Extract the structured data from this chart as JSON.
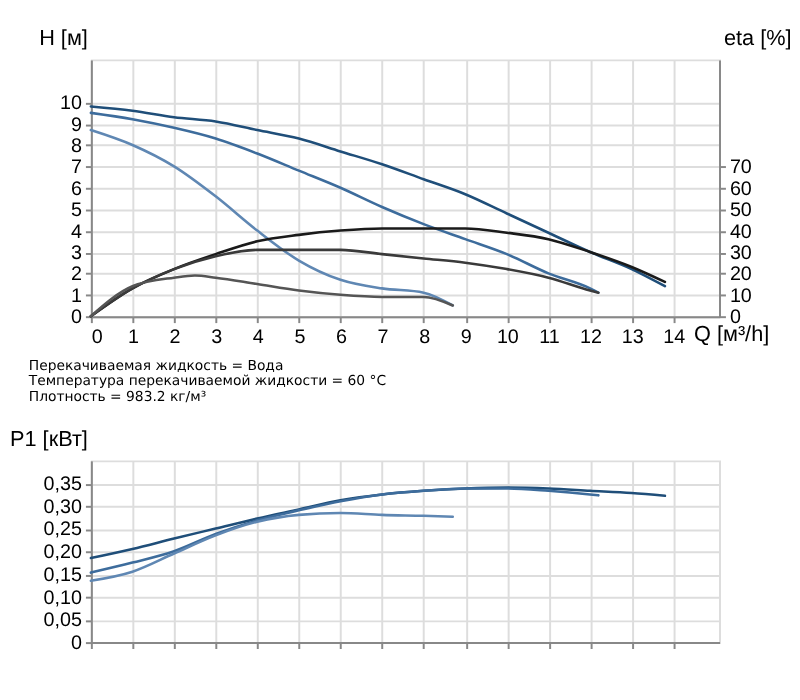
{
  "chart_data": [
    {
      "type": "line",
      "xlabel": "Q [м³/h]",
      "ylabel": "H [м]",
      "y2label": "eta [%]",
      "xlim": [
        0,
        15.1
      ],
      "xticks": [
        0,
        1,
        2,
        3,
        4,
        5,
        6,
        7,
        8,
        9,
        10,
        11,
        12,
        13,
        14
      ],
      "ylim": [
        0,
        12
      ],
      "yticks": [
        0,
        1,
        2,
        3,
        4,
        5,
        6,
        7,
        8,
        9,
        10
      ],
      "y2lim": [
        0,
        120
      ],
      "y2ticks": [
        0,
        10,
        20,
        30,
        40,
        50,
        60,
        70
      ],
      "grid": true,
      "marker": "none",
      "line_style": "solid",
      "series": [
        {
          "color": "#1f4e79",
          "x": [
            0,
            1,
            2,
            3,
            4,
            5,
            6,
            7,
            8,
            9,
            10,
            11,
            12,
            13,
            13.8
          ],
          "values": [
            9.8,
            9.6,
            9.3,
            9.1,
            8.7,
            8.3,
            7.7,
            7.1,
            6.4,
            5.7,
            4.8,
            3.9,
            3.0,
            2.2,
            1.4
          ]
        },
        {
          "color": "#3d6c9c",
          "x": [
            0,
            1,
            2,
            3,
            4,
            5,
            6,
            7,
            8,
            9,
            10,
            11,
            12,
            12.2
          ],
          "values": [
            9.5,
            9.2,
            8.8,
            8.3,
            7.6,
            6.8,
            6.0,
            5.1,
            4.3,
            3.6,
            2.9,
            2.0,
            1.3,
            1.1
          ]
        },
        {
          "color": "#5f87b3",
          "x": [
            0,
            1,
            2,
            3,
            4,
            5,
            6,
            7,
            8,
            8.7
          ],
          "values": [
            8.7,
            8.0,
            7.0,
            5.6,
            4.0,
            2.6,
            1.7,
            1.3,
            1.1,
            0.5
          ]
        },
        {
          "color": "#1a1a1a",
          "axis": "y2",
          "x": [
            0,
            1,
            2,
            3,
            4,
            5,
            6,
            7,
            8,
            9,
            10,
            11,
            12,
            13,
            13.8
          ],
          "values": [
            0,
            13,
            22,
            29,
            35,
            38,
            40,
            41,
            41,
            41,
            39,
            36,
            30,
            23,
            16
          ]
        },
        {
          "color": "#3a3a3a",
          "axis": "y2",
          "x": [
            0,
            1,
            2,
            3,
            4,
            5,
            6,
            7,
            8,
            9,
            10,
            11,
            12,
            12.2
          ],
          "values": [
            0,
            13,
            22,
            28,
            31,
            31,
            31,
            29,
            27,
            25,
            22,
            18,
            12,
            11
          ]
        },
        {
          "color": "#555555",
          "axis": "y2",
          "x": [
            0,
            1,
            2,
            2.5,
            3,
            4,
            5,
            6,
            7,
            8,
            8.7
          ],
          "values": [
            0,
            14,
            18,
            19,
            18,
            15,
            12,
            10,
            9,
            9,
            5
          ]
        }
      ]
    },
    {
      "type": "line",
      "ylabel": "P1 [кВт]",
      "tick_labels": "y",
      "xlim": [
        0,
        15.1
      ],
      "xticks": [
        0,
        1,
        2,
        3,
        4,
        5,
        6,
        7,
        8,
        9,
        10,
        11,
        12,
        13,
        14
      ],
      "ylim": [
        0,
        0.4
      ],
      "yticks": [
        0,
        {
          "value": 0.05,
          "label": "0,05"
        },
        {
          "value": 0.1,
          "label": "0,10"
        },
        {
          "value": 0.15,
          "label": "0,15"
        },
        {
          "value": 0.2,
          "label": "0,20"
        },
        {
          "value": 0.25,
          "label": "0,25"
        },
        {
          "value": 0.3,
          "label": "0,30"
        },
        {
          "value": 0.35,
          "label": "0,35"
        }
      ],
      "grid": true,
      "marker": "none",
      "line_style": "solid",
      "annotations": [
        "Перекачиваемая жидкость = Вода",
        "Температура перекачиваемой жидкости = 60 °C",
        "Плотность = 983.2 кг/м³"
      ],
      "series": [
        {
          "color": "#1f4e79",
          "x": [
            0,
            1,
            2,
            3,
            4,
            5,
            6,
            7,
            8,
            9,
            10,
            11,
            12,
            13,
            13.8
          ],
          "values": [
            0.185,
            0.205,
            0.228,
            0.25,
            0.272,
            0.292,
            0.312,
            0.325,
            0.333,
            0.338,
            0.34,
            0.338,
            0.333,
            0.328,
            0.322
          ]
        },
        {
          "color": "#3d6c9c",
          "x": [
            0,
            1,
            2,
            3,
            4,
            5,
            6,
            7,
            8,
            9,
            10,
            11,
            12,
            12.2
          ],
          "values": [
            0.153,
            0.175,
            0.2,
            0.238,
            0.268,
            0.29,
            0.31,
            0.325,
            0.333,
            0.338,
            0.338,
            0.333,
            0.325,
            0.323
          ]
        },
        {
          "color": "#5f87b3",
          "x": [
            0,
            1,
            2,
            3,
            4,
            5,
            6,
            7,
            8,
            8.7
          ],
          "values": [
            0.135,
            0.155,
            0.195,
            0.235,
            0.265,
            0.28,
            0.284,
            0.28,
            0.278,
            0.276
          ]
        }
      ]
    }
  ]
}
